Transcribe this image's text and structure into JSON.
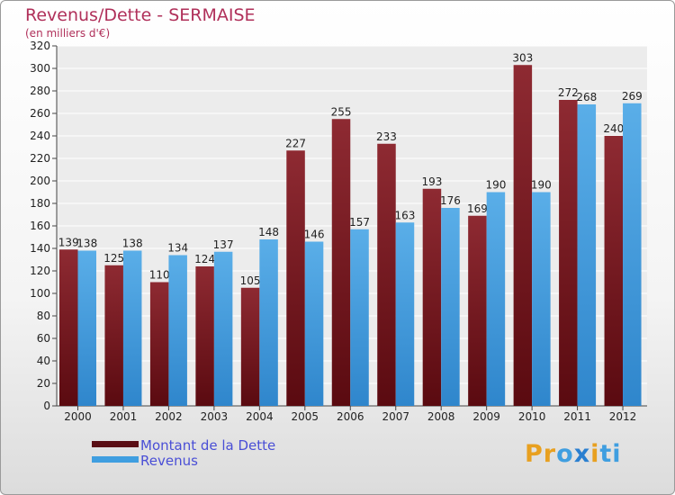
{
  "title": "Revenus/Dette - SERMAISE",
  "subtitle": "(en milliers d'€)",
  "chart_data": {
    "type": "bar",
    "categories": [
      "2000",
      "2001",
      "2002",
      "2003",
      "2004",
      "2005",
      "2006",
      "2007",
      "2008",
      "2009",
      "2010",
      "2011",
      "2012"
    ],
    "series": [
      {
        "name": "Montant de la Dette",
        "values": [
          139,
          125,
          110,
          124,
          105,
          227,
          255,
          233,
          193,
          169,
          303,
          272,
          240
        ],
        "color": "#7a1a22"
      },
      {
        "name": "Revenus",
        "values": [
          138,
          138,
          134,
          137,
          148,
          146,
          157,
          163,
          176,
          190,
          190,
          268,
          269
        ],
        "color": "#3f9ee0"
      }
    ],
    "yticks": [
      0,
      20,
      40,
      60,
      80,
      100,
      120,
      140,
      160,
      180,
      200,
      220,
      240,
      260,
      280,
      300,
      320
    ],
    "ylim": [
      0,
      320
    ],
    "grid": true,
    "legend_position": "bottom-left"
  },
  "legend": {
    "debt_label": "Montant de la Dette",
    "revenue_label": "Revenus"
  },
  "logo": {
    "text": "Proxiti",
    "letters": [
      "P",
      "r",
      "o",
      "x",
      "i",
      "t",
      "i"
    ],
    "colors": [
      "#e8a020",
      "#e8a020",
      "#3f9ee0",
      "#2a7fd0",
      "#e8a020",
      "#3f9ee0",
      "#3f9ee0"
    ]
  }
}
